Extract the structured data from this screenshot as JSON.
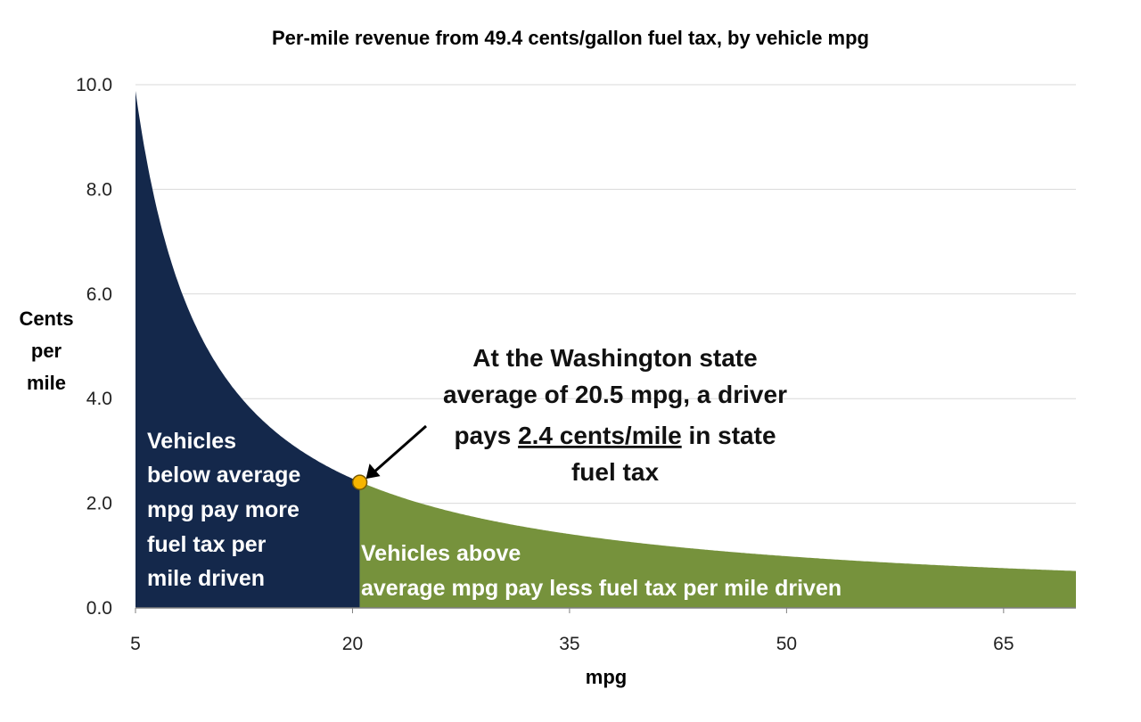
{
  "chart_data": {
    "type": "area",
    "title": "Per-mile revenue from 49.4 cents/gallon fuel tax, by vehicle mpg",
    "xlabel": "mpg",
    "ylabel_lines": [
      "Cents",
      "per",
      "mile"
    ],
    "xlim": [
      5,
      70
    ],
    "ylim": [
      0,
      10
    ],
    "x_ticks": [
      "5",
      "20",
      "35",
      "50",
      "65"
    ],
    "y_ticks": [
      "0.0",
      "2.0",
      "4.0",
      "6.0",
      "8.0",
      "10.0"
    ],
    "grid": "horizontal",
    "tax_cents_per_gallon": 49.4,
    "x": [
      5,
      10,
      15,
      20,
      25,
      30,
      35,
      40,
      45,
      50,
      55,
      60,
      65,
      70
    ],
    "y": [
      9.88,
      4.94,
      3.29,
      2.47,
      1.98,
      1.65,
      1.41,
      1.24,
      1.1,
      0.99,
      0.9,
      0.82,
      0.76,
      0.71
    ],
    "average_point": {
      "x": 20.5,
      "y": 2.4
    },
    "regions": [
      {
        "label_lines": [
          "Vehicles",
          "below average",
          "mpg pay more",
          "fuel tax per",
          "mile driven"
        ],
        "color": "#14284b"
      },
      {
        "label_lines": [
          "Vehicles above",
          "average mpg pay less fuel tax per mile driven"
        ],
        "color": "#76923c"
      }
    ],
    "annotation": {
      "line1": "At the Washington state",
      "line2": "average of 20.5 mpg, a driver",
      "line3_pre": "pays ",
      "line3_underlined": "2.4 cents/mile",
      "line3_post": " in state",
      "line4": "fuel tax"
    },
    "colors": {
      "point": "#f7b500",
      "grid": "#d9d9d9",
      "axis": "#7f7f7f"
    }
  }
}
